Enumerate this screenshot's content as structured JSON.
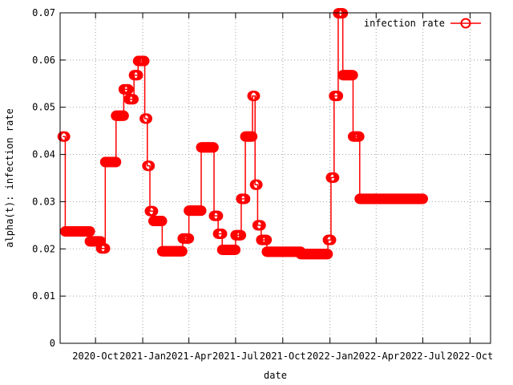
{
  "chart_data": {
    "type": "line",
    "title": "",
    "xlabel": "date",
    "ylabel": "alpha(t): infection rate",
    "ylim": [
      0,
      0.07
    ],
    "xlim": [
      "2020-07-24",
      "2022-11-10"
    ],
    "grid": true,
    "legend_position": "top-right",
    "y_ticks": [
      "0",
      "0.01",
      "0.02",
      "0.03",
      "0.04",
      "0.05",
      "0.06",
      "0.07"
    ],
    "x_ticks": [
      {
        "label": "2020-Oct",
        "date": "2020-10-01"
      },
      {
        "label": "2021-Jan",
        "date": "2021-01-01"
      },
      {
        "label": "2021-Apr",
        "date": "2021-04-01"
      },
      {
        "label": "2021-Jul",
        "date": "2021-07-01"
      },
      {
        "label": "2021-Oct",
        "date": "2021-10-01"
      },
      {
        "label": "2022-Jan",
        "date": "2022-01-01"
      },
      {
        "label": "2022-Apr",
        "date": "2022-04-01"
      },
      {
        "label": "2022-Jul",
        "date": "2022-07-01"
      },
      {
        "label": "2022-Oct",
        "date": "2022-10-01"
      }
    ],
    "series": [
      {
        "name": "infection rate",
        "color": "#ff0000",
        "marker": "circle",
        "segments": [
          {
            "from": "2020-07-29",
            "to": "2020-08-03",
            "value": 0.0438
          },
          {
            "from": "2020-08-03",
            "to": "2020-09-20",
            "value": 0.0237
          },
          {
            "from": "2020-09-20",
            "to": "2020-10-12",
            "value": 0.0216
          },
          {
            "from": "2020-10-12",
            "to": "2020-10-20",
            "value": 0.0201
          },
          {
            "from": "2020-10-20",
            "to": "2020-11-10",
            "value": 0.0384
          },
          {
            "from": "2020-11-10",
            "to": "2020-11-25",
            "value": 0.0482
          },
          {
            "from": "2020-11-25",
            "to": "2020-12-05",
            "value": 0.0538
          },
          {
            "from": "2020-12-05",
            "to": "2020-12-15",
            "value": 0.0517
          },
          {
            "from": "2020-12-15",
            "to": "2020-12-23",
            "value": 0.0568
          },
          {
            "from": "2020-12-23",
            "to": "2021-01-05",
            "value": 0.0598
          },
          {
            "from": "2021-01-05",
            "to": "2021-01-10",
            "value": 0.0476
          },
          {
            "from": "2021-01-10",
            "to": "2021-01-15",
            "value": 0.0376
          },
          {
            "from": "2021-01-15",
            "to": "2021-01-22",
            "value": 0.028
          },
          {
            "from": "2021-01-22",
            "to": "2021-02-08",
            "value": 0.0259
          },
          {
            "from": "2021-02-08",
            "to": "2021-03-20",
            "value": 0.0195
          },
          {
            "from": "2021-03-20",
            "to": "2021-04-01",
            "value": 0.0222
          },
          {
            "from": "2021-04-01",
            "to": "2021-04-25",
            "value": 0.0281
          },
          {
            "from": "2021-04-25",
            "to": "2021-05-20",
            "value": 0.0415
          },
          {
            "from": "2021-05-20",
            "to": "2021-05-28",
            "value": 0.027
          },
          {
            "from": "2021-05-28",
            "to": "2021-06-05",
            "value": 0.0232
          },
          {
            "from": "2021-06-05",
            "to": "2021-07-01",
            "value": 0.0198
          },
          {
            "from": "2021-07-01",
            "to": "2021-07-12",
            "value": 0.0229
          },
          {
            "from": "2021-07-12",
            "to": "2021-07-20",
            "value": 0.0306
          },
          {
            "from": "2021-07-20",
            "to": "2021-08-03",
            "value": 0.0438
          },
          {
            "from": "2021-08-03",
            "to": "2021-08-08",
            "value": 0.0524
          },
          {
            "from": "2021-08-08",
            "to": "2021-08-13",
            "value": 0.0336
          },
          {
            "from": "2021-08-13",
            "to": "2021-08-20",
            "value": 0.025
          },
          {
            "from": "2021-08-20",
            "to": "2021-08-31",
            "value": 0.0219
          },
          {
            "from": "2021-08-31",
            "to": "2021-11-05",
            "value": 0.0194
          },
          {
            "from": "2021-11-05",
            "to": "2021-12-28",
            "value": 0.0189
          },
          {
            "from": "2021-12-28",
            "to": "2022-01-03",
            "value": 0.0219
          },
          {
            "from": "2022-01-03",
            "to": "2022-01-09",
            "value": 0.0351
          },
          {
            "from": "2022-01-09",
            "to": "2022-01-17",
            "value": 0.0524
          },
          {
            "from": "2022-01-17",
            "to": "2022-01-26",
            "value": 0.0699
          },
          {
            "from": "2022-01-26",
            "to": "2022-02-15",
            "value": 0.0568
          },
          {
            "from": "2022-02-15",
            "to": "2022-02-28",
            "value": 0.0438
          },
          {
            "from": "2022-02-28",
            "to": "2022-07-01",
            "value": 0.0306
          }
        ]
      }
    ]
  }
}
